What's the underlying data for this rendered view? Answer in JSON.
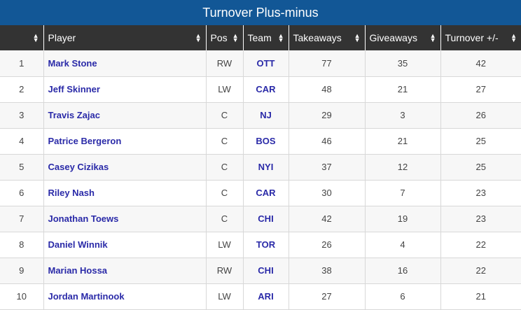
{
  "title": "Turnover Plus-minus",
  "columns": [
    "",
    "Player",
    "Pos",
    "Team",
    "Takeaways",
    "Giveaways",
    "Turnover +/-"
  ],
  "rows": [
    {
      "rank": "1",
      "player": "Mark Stone",
      "pos": "RW",
      "team": "OTT",
      "takeaways": "77",
      "giveaways": "35",
      "plusminus": "42"
    },
    {
      "rank": "2",
      "player": "Jeff Skinner",
      "pos": "LW",
      "team": "CAR",
      "takeaways": "48",
      "giveaways": "21",
      "plusminus": "27"
    },
    {
      "rank": "3",
      "player": "Travis Zajac",
      "pos": "C",
      "team": "NJ",
      "takeaways": "29",
      "giveaways": "3",
      "plusminus": "26"
    },
    {
      "rank": "4",
      "player": "Patrice Bergeron",
      "pos": "C",
      "team": "BOS",
      "takeaways": "46",
      "giveaways": "21",
      "plusminus": "25"
    },
    {
      "rank": "5",
      "player": "Casey Cizikas",
      "pos": "C",
      "team": "NYI",
      "takeaways": "37",
      "giveaways": "12",
      "plusminus": "25"
    },
    {
      "rank": "6",
      "player": "Riley Nash",
      "pos": "C",
      "team": "CAR",
      "takeaways": "30",
      "giveaways": "7",
      "plusminus": "23"
    },
    {
      "rank": "7",
      "player": "Jonathan Toews",
      "pos": "C",
      "team": "CHI",
      "takeaways": "42",
      "giveaways": "19",
      "plusminus": "23"
    },
    {
      "rank": "8",
      "player": "Daniel Winnik",
      "pos": "LW",
      "team": "TOR",
      "takeaways": "26",
      "giveaways": "4",
      "plusminus": "22"
    },
    {
      "rank": "9",
      "player": "Marian Hossa",
      "pos": "RW",
      "team": "CHI",
      "takeaways": "38",
      "giveaways": "16",
      "plusminus": "22"
    },
    {
      "rank": "10",
      "player": "Jordan Martinook",
      "pos": "LW",
      "team": "ARI",
      "takeaways": "27",
      "giveaways": "6",
      "plusminus": "21"
    }
  ]
}
